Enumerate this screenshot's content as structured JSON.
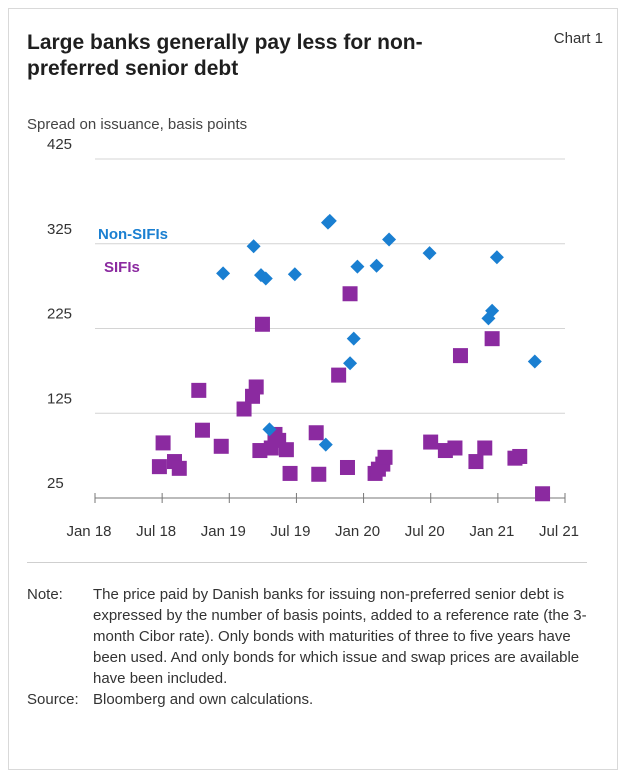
{
  "header": {
    "title": "Large banks generally pay less for non-preferred senior debt",
    "chart_label": "Chart 1",
    "ylabel": "Spread on issuance, basis points"
  },
  "colors": {
    "non_sifi": "#1a7fd1",
    "sifi": "#8b2aa0",
    "grid": "#d4d4d4",
    "axis": "#777777"
  },
  "chart_data": {
    "type": "scatter",
    "title": "Large banks generally pay less for non-preferred senior debt",
    "ylabel": "Spread on issuance, basis points",
    "xlabel": "",
    "x_ticks": [
      "Jan 18",
      "Jul 18",
      "Jan 19",
      "Jul 19",
      "Jan 20",
      "Jul 20",
      "Jan 21",
      "Jul 21"
    ],
    "xlim": [
      "2018-01-01",
      "2021-07-01"
    ],
    "y_ticks": [
      25,
      125,
      225,
      325,
      425
    ],
    "ylim": [
      25,
      425
    ],
    "grid": "horizontal",
    "legend": "inline labels, upper-left",
    "series": [
      {
        "name": "Non-SIFIs",
        "marker": "diamond",
        "points": [
          [
            "2018-12-15",
            290
          ],
          [
            "2019-03-08",
            322
          ],
          [
            "2019-03-28",
            288
          ],
          [
            "2019-04-10",
            284
          ],
          [
            "2019-04-20",
            106
          ],
          [
            "2019-06-28",
            289
          ],
          [
            "2019-09-20",
            88
          ],
          [
            "2019-09-26",
            350
          ],
          [
            "2019-10-01",
            352
          ],
          [
            "2019-11-25",
            184
          ],
          [
            "2019-12-05",
            213
          ],
          [
            "2019-12-15",
            298
          ],
          [
            "2020-02-05",
            299
          ],
          [
            "2020-03-10",
            330
          ],
          [
            "2020-06-28",
            314
          ],
          [
            "2020-12-05",
            237
          ],
          [
            "2020-12-15",
            246
          ],
          [
            "2020-12-28",
            309
          ],
          [
            "2021-04-10",
            186
          ]
        ]
      },
      {
        "name": "SIFIs",
        "marker": "square",
        "points": [
          [
            "2018-06-25",
            62
          ],
          [
            "2018-07-05",
            90
          ],
          [
            "2018-08-05",
            68
          ],
          [
            "2018-08-18",
            60
          ],
          [
            "2018-10-10",
            152
          ],
          [
            "2018-10-20",
            105
          ],
          [
            "2018-12-10",
            86
          ],
          [
            "2019-02-10",
            130
          ],
          [
            "2019-03-05",
            145
          ],
          [
            "2019-03-15",
            156
          ],
          [
            "2019-03-25",
            81
          ],
          [
            "2019-04-01",
            230
          ],
          [
            "2019-04-25",
            84
          ],
          [
            "2019-05-05",
            100
          ],
          [
            "2019-05-15",
            93
          ],
          [
            "2019-06-05",
            82
          ],
          [
            "2019-06-15",
            54
          ],
          [
            "2019-08-25",
            102
          ],
          [
            "2019-09-01",
            53
          ],
          [
            "2019-10-25",
            170
          ],
          [
            "2019-11-18",
            61
          ],
          [
            "2019-11-25",
            266
          ],
          [
            "2020-02-01",
            54
          ],
          [
            "2020-02-10",
            59
          ],
          [
            "2020-02-22",
            65
          ],
          [
            "2020-02-28",
            73
          ],
          [
            "2020-07-01",
            91
          ],
          [
            "2020-08-10",
            81
          ],
          [
            "2020-09-05",
            84
          ],
          [
            "2020-09-20",
            193
          ],
          [
            "2020-11-01",
            68
          ],
          [
            "2020-11-25",
            84
          ],
          [
            "2020-12-15",
            213
          ],
          [
            "2021-02-15",
            72
          ],
          [
            "2021-02-28",
            74
          ],
          [
            "2021-05-01",
            30
          ]
        ]
      }
    ]
  },
  "notes": {
    "note_label": "Note:",
    "note_text": "The price paid by Danish banks for issuing non-preferred senior debt is expressed by the number of basis points, added to a reference rate (the 3-month Cibor rate). Only bonds with maturities of three to five years have been used. And only bonds for which issue and swap prices are available have been included.",
    "source_label": "Source:",
    "source_text": "Bloomberg and own calculations."
  }
}
